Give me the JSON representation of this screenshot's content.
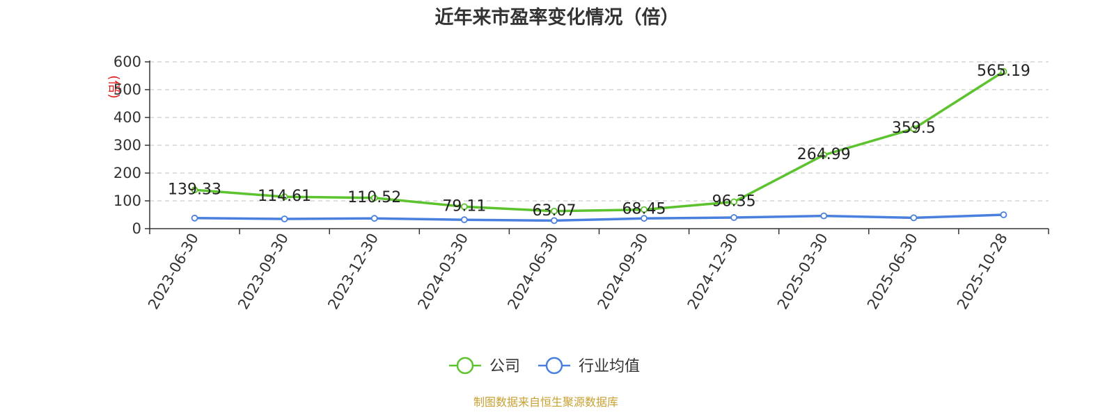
{
  "chart_data": {
    "type": "line",
    "title": "近年来市盈率变化情况（倍）",
    "ylabel": "(倍)",
    "ylim": [
      0,
      600
    ],
    "yticks": [
      0,
      100,
      200,
      300,
      400,
      500,
      600
    ],
    "categories": [
      "2023-06-30",
      "2023-09-30",
      "2023-12-30",
      "2024-03-30",
      "2024-06-30",
      "2024-09-30",
      "2024-12-30",
      "2025-03-30",
      "2025-06-30",
      "2025-10-28"
    ],
    "series": [
      {
        "name": "公司",
        "color": "#5cc22e",
        "values": [
          139.33,
          114.61,
          110.52,
          79.11,
          63.07,
          68.45,
          96.35,
          264.99,
          359.5,
          565.19
        ],
        "labels": [
          "139.33",
          "114.61",
          "110.52",
          "79.11",
          "63.07",
          "68.45",
          "96.35",
          "264.99",
          "359.5",
          "565.19"
        ]
      },
      {
        "name": "行业均值",
        "color": "#4a80dd",
        "values": [
          38,
          35,
          37,
          32,
          29,
          37,
          40,
          46,
          39,
          50
        ]
      }
    ],
    "grid": true,
    "legend_position": "bottom-center",
    "source": "制图数据来自恒生聚源数据库",
    "source_color": "#c8a032",
    "unit_color": "#e02020"
  }
}
